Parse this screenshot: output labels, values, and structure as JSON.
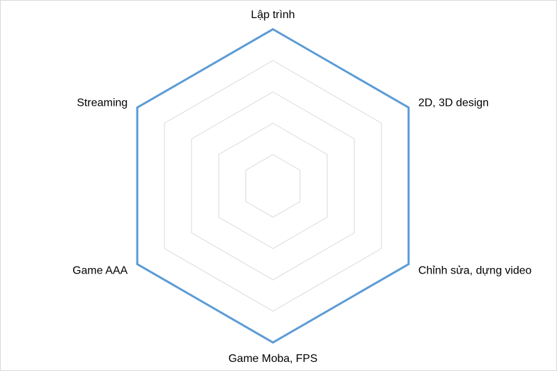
{
  "chart_data": {
    "type": "radar",
    "categories": [
      "Lập trình",
      "2D, 3D design",
      "Chỉnh sửa, dựng video",
      "Game Moba, FPS",
      "Game AAA",
      "Streaming"
    ],
    "series": [
      {
        "values": [
          5,
          5,
          5,
          5,
          5,
          5
        ],
        "color": "#5b9bd5"
      }
    ],
    "rlim": [
      0,
      5
    ],
    "grid": true,
    "grid_color": "#d9d9d9",
    "legend": "none"
  }
}
